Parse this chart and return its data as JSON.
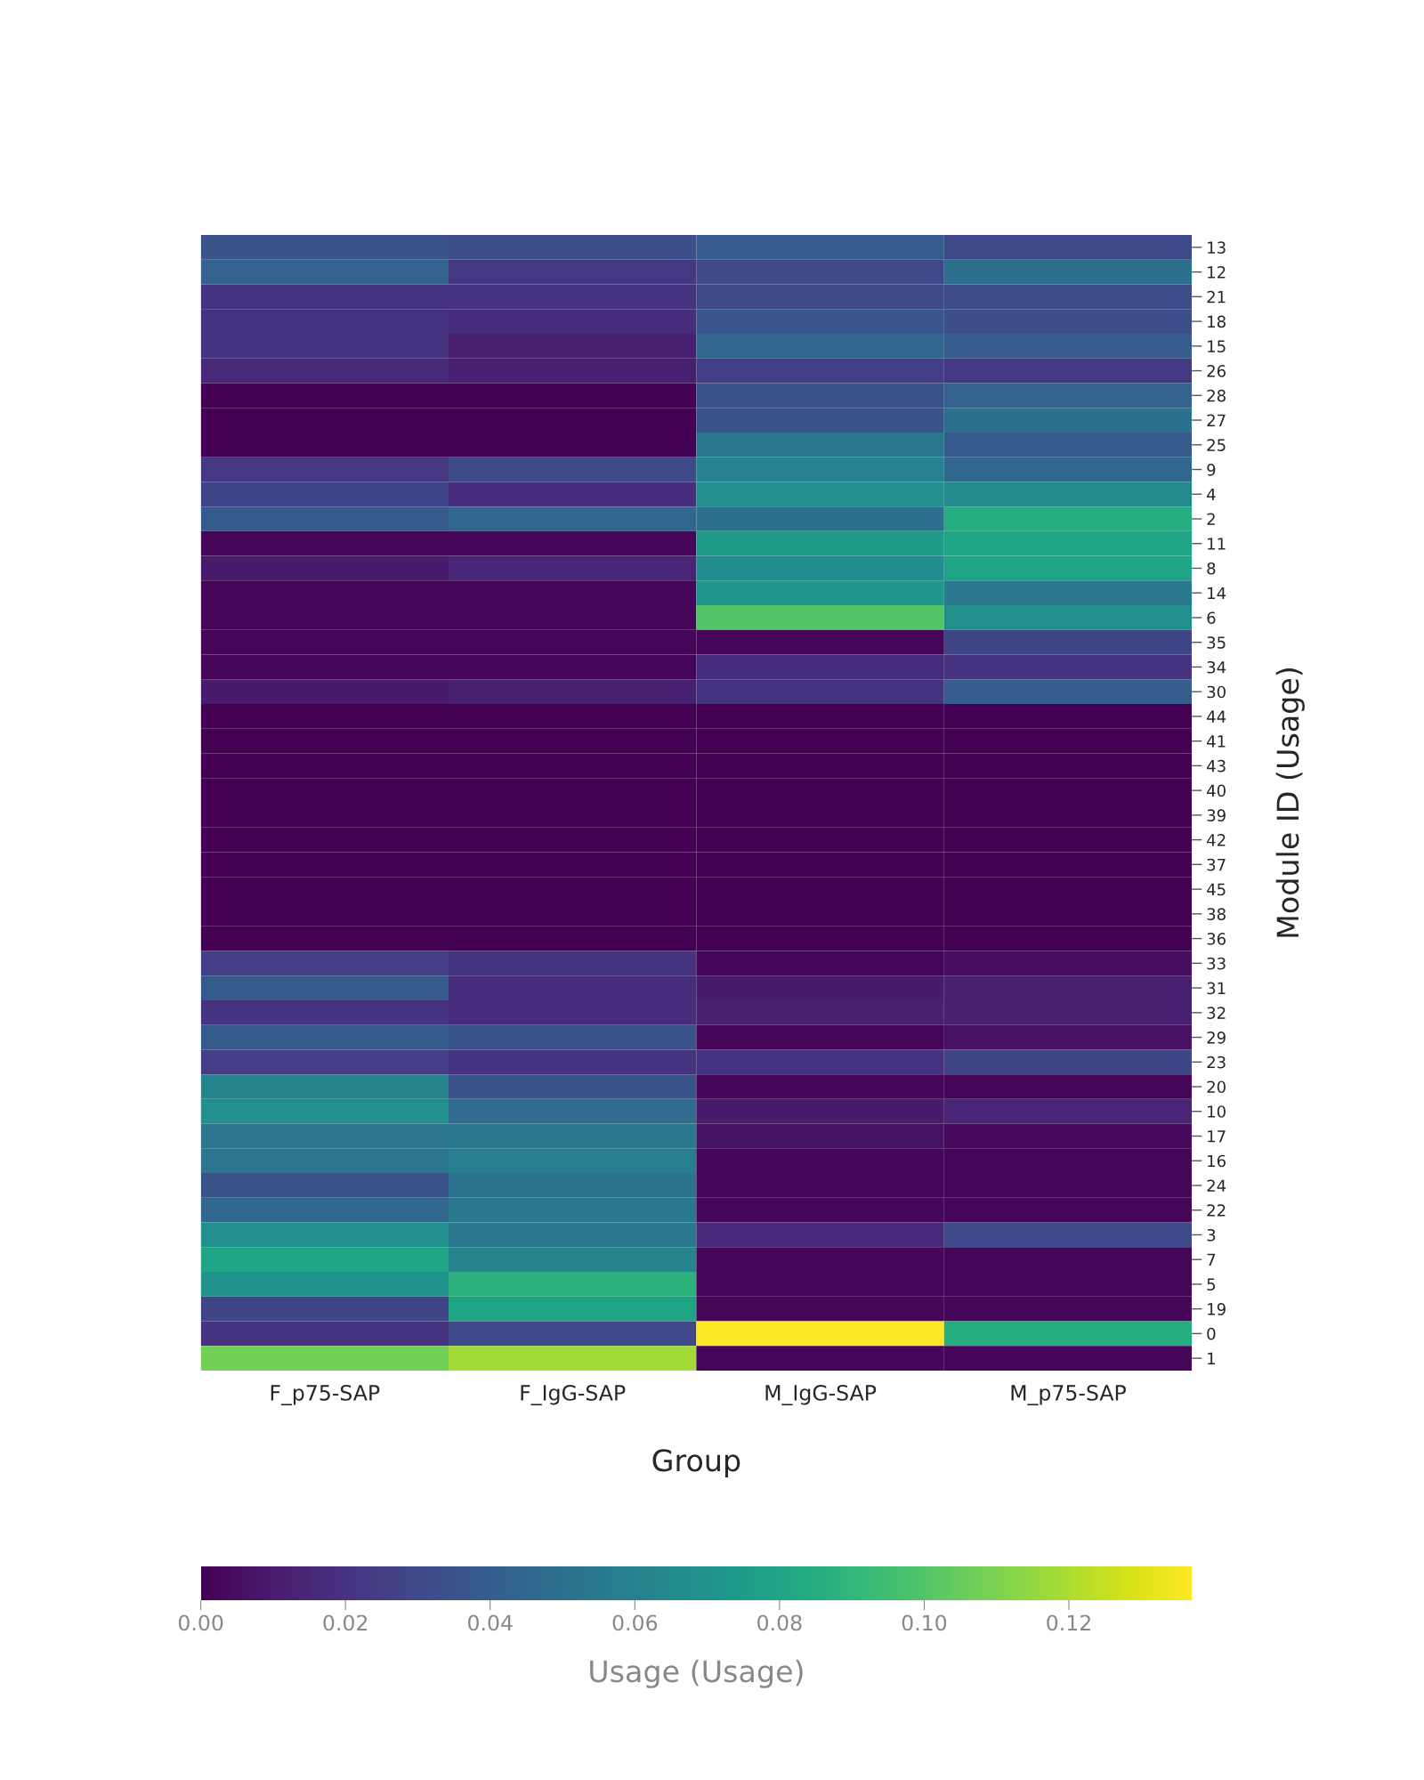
{
  "chart_data": {
    "type": "heatmap",
    "xlabel": "Group",
    "ylabel": "Module ID (Usage)",
    "clabel": "Usage (Usage)",
    "categories": [
      "F_p75-SAP",
      "F_IgG-SAP",
      "M_IgG-SAP",
      "M_p75-SAP"
    ],
    "y_categories": [
      "13",
      "12",
      "21",
      "18",
      "15",
      "26",
      "28",
      "27",
      "25",
      "9",
      "4",
      "2",
      "11",
      "8",
      "14",
      "6",
      "35",
      "34",
      "30",
      "44",
      "41",
      "43",
      "40",
      "39",
      "42",
      "37",
      "45",
      "38",
      "36",
      "33",
      "31",
      "32",
      "29",
      "23",
      "20",
      "10",
      "17",
      "16",
      "24",
      "22",
      "3",
      "7",
      "5",
      "19",
      "0",
      "1"
    ],
    "cells": [
      [
        0.035,
        0.033,
        0.04,
        0.03
      ],
      [
        0.042,
        0.022,
        0.03,
        0.05
      ],
      [
        0.02,
        0.02,
        0.03,
        0.032
      ],
      [
        0.02,
        0.018,
        0.036,
        0.033
      ],
      [
        0.02,
        0.012,
        0.045,
        0.04
      ],
      [
        0.016,
        0.012,
        0.025,
        0.022
      ],
      [
        0.0,
        0.0,
        0.035,
        0.042
      ],
      [
        0.0,
        0.0,
        0.035,
        0.05
      ],
      [
        0.0,
        0.0,
        0.055,
        0.038
      ],
      [
        0.022,
        0.03,
        0.06,
        0.045
      ],
      [
        0.028,
        0.018,
        0.068,
        0.065
      ],
      [
        0.038,
        0.045,
        0.05,
        0.085
      ],
      [
        0.002,
        0.002,
        0.075,
        0.08
      ],
      [
        0.01,
        0.014,
        0.067,
        0.08
      ],
      [
        0.002,
        0.002,
        0.072,
        0.055
      ],
      [
        0.002,
        0.002,
        0.1,
        0.068
      ],
      [
        0.002,
        0.002,
        0.002,
        0.028
      ],
      [
        0.002,
        0.002,
        0.018,
        0.02
      ],
      [
        0.01,
        0.012,
        0.02,
        0.04
      ],
      [
        0.0,
        0.0,
        0.0,
        0.0
      ],
      [
        0.0,
        0.0,
        0.0,
        0.0
      ],
      [
        0.0,
        0.0,
        0.0,
        0.0
      ],
      [
        0.0,
        0.0,
        0.0,
        0.0
      ],
      [
        0.0,
        0.0,
        0.0,
        0.0
      ],
      [
        0.0,
        0.0,
        0.0,
        0.0
      ],
      [
        0.0,
        0.0,
        0.0,
        0.0
      ],
      [
        0.0,
        0.0,
        0.0,
        0.0
      ],
      [
        0.0,
        0.0,
        0.0,
        0.0
      ],
      [
        0.0,
        0.0,
        0.0,
        0.0
      ],
      [
        0.025,
        0.02,
        0.002,
        0.005
      ],
      [
        0.038,
        0.018,
        0.01,
        0.012
      ],
      [
        0.02,
        0.018,
        0.012,
        0.012
      ],
      [
        0.038,
        0.035,
        0.002,
        0.006
      ],
      [
        0.025,
        0.02,
        0.02,
        0.028
      ],
      [
        0.062,
        0.035,
        0.002,
        0.002
      ],
      [
        0.068,
        0.048,
        0.01,
        0.014
      ],
      [
        0.053,
        0.055,
        0.006,
        0.003
      ],
      [
        0.053,
        0.058,
        0.002,
        0.002
      ],
      [
        0.035,
        0.052,
        0.002,
        0.002
      ],
      [
        0.045,
        0.055,
        0.002,
        0.002
      ],
      [
        0.068,
        0.055,
        0.015,
        0.03
      ],
      [
        0.08,
        0.062,
        0.002,
        0.002
      ],
      [
        0.07,
        0.088,
        0.002,
        0.002
      ],
      [
        0.028,
        0.08,
        0.002,
        0.002
      ],
      [
        0.02,
        0.03,
        0.137,
        0.085
      ],
      [
        0.108,
        0.118,
        0.002,
        0.002
      ]
    ],
    "clim": [
      0.0,
      0.137
    ],
    "cticks": [
      {
        "value": 0.0,
        "label": "0.00"
      },
      {
        "value": 0.02,
        "label": "0.02"
      },
      {
        "value": 0.04,
        "label": "0.04"
      },
      {
        "value": 0.06,
        "label": "0.06"
      },
      {
        "value": 0.08,
        "label": "0.08"
      },
      {
        "value": 0.1,
        "label": "0.10"
      },
      {
        "value": 0.12,
        "label": "0.12"
      }
    ]
  }
}
